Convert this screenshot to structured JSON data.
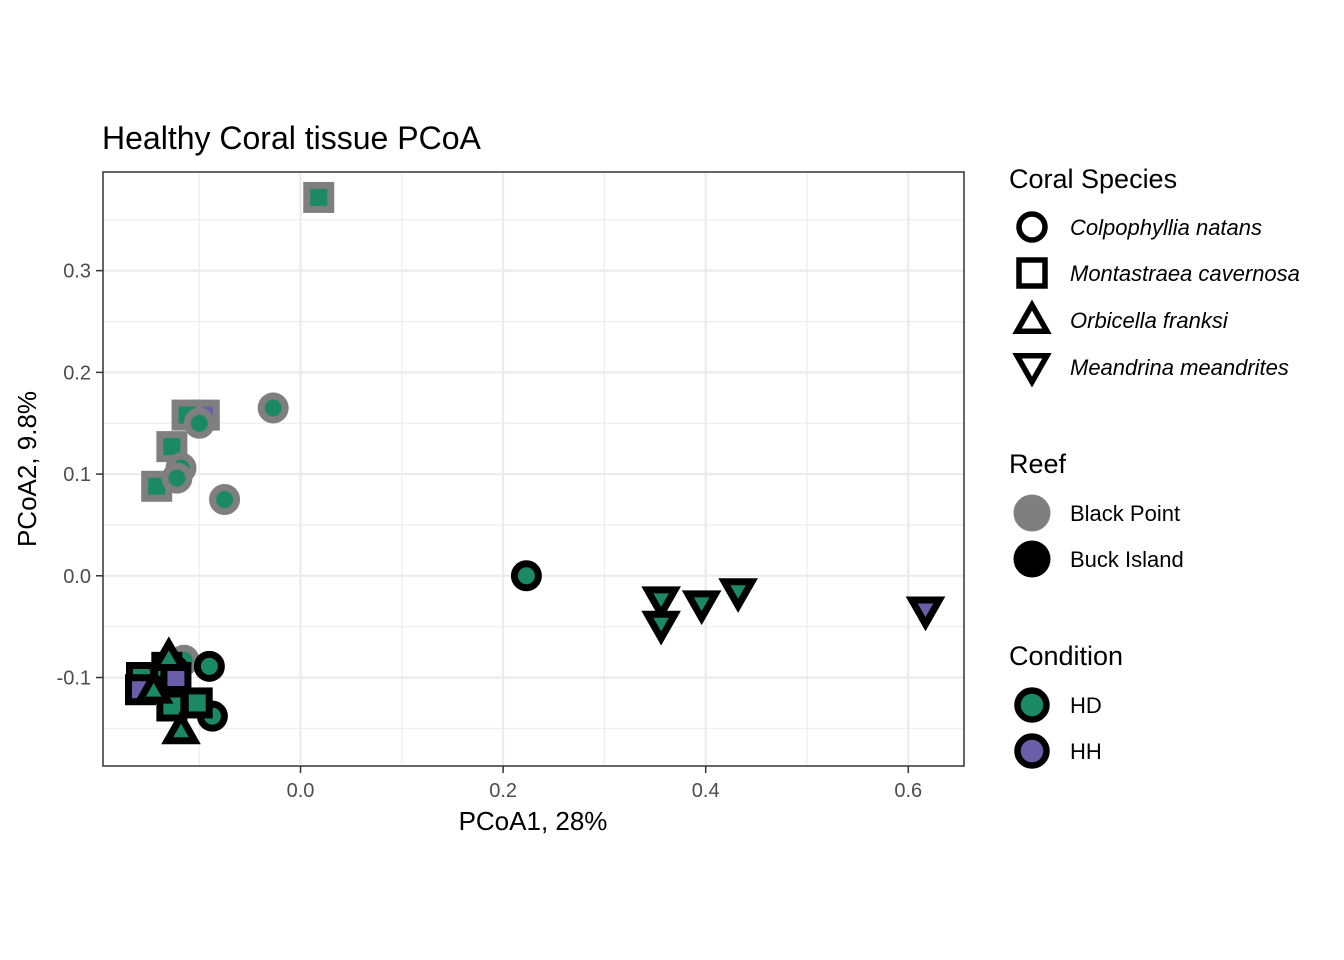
{
  "chart_data": {
    "type": "scatter",
    "title": "Healthy Coral tissue PCoA",
    "xlabel": "PCoA1, 28%",
    "ylabel": "PCoA2, 9.8%",
    "xlim": [
      -0.195,
      0.655
    ],
    "ylim": [
      -0.187,
      0.397
    ],
    "x_ticks": [
      0.0,
      0.2,
      0.4,
      0.6
    ],
    "x_tick_labels": [
      "0.0",
      "0.2",
      "0.4",
      "0.6"
    ],
    "y_ticks": [
      -0.1,
      0.0,
      0.1,
      0.2,
      0.3
    ],
    "y_tick_labels": [
      "-0.1",
      "0.0",
      "0.1",
      "0.2",
      "0.3"
    ],
    "grid": true,
    "legend_placement": "right",
    "colors": {
      "HD": "#1b8a64",
      "HH": "#6a5ea8",
      "Black Point": "#7f7f7f",
      "Buck Island": "#000000",
      "grid": "#ebebeb",
      "panel_border": "#333333"
    },
    "legends": [
      {
        "title": "Coral Species",
        "italic": true,
        "entries": [
          {
            "label": "Colpophyllia natans",
            "shape": "circle"
          },
          {
            "label": "Montastraea cavernosa",
            "shape": "square"
          },
          {
            "label": "Orbicella franksi",
            "shape": "triangle"
          },
          {
            "label": "Meandrina meandrites",
            "shape": "triangle-down"
          }
        ]
      },
      {
        "title": "Reef",
        "italic": false,
        "entries": [
          {
            "label": "Black Point",
            "color": "#7f7f7f"
          },
          {
            "label": "Buck Island",
            "color": "#000000"
          }
        ]
      },
      {
        "title": "Condition",
        "italic": false,
        "entries": [
          {
            "label": "HD",
            "fill": "#1b8a64"
          },
          {
            "label": "HH",
            "fill": "#6a5ea8"
          }
        ]
      }
    ],
    "points": [
      {
        "x": 0.018,
        "y": 0.372,
        "shape": "square",
        "reef": "Black Point",
        "condition": "HD"
      },
      {
        "x": -0.095,
        "y": 0.158,
        "shape": "square",
        "reef": "Black Point",
        "condition": "HH"
      },
      {
        "x": -0.112,
        "y": 0.158,
        "shape": "square",
        "reef": "Black Point",
        "condition": "HD"
      },
      {
        "x": -0.127,
        "y": 0.127,
        "shape": "square",
        "reef": "Black Point",
        "condition": "HD"
      },
      {
        "x": -0.142,
        "y": 0.088,
        "shape": "square",
        "reef": "Black Point",
        "condition": "HD"
      },
      {
        "x": -0.027,
        "y": 0.165,
        "shape": "circle",
        "reef": "Black Point",
        "condition": "HD"
      },
      {
        "x": -0.1,
        "y": 0.15,
        "shape": "circle",
        "reef": "Black Point",
        "condition": "HD"
      },
      {
        "x": -0.118,
        "y": 0.106,
        "shape": "circle",
        "reef": "Black Point",
        "condition": "HD"
      },
      {
        "x": -0.122,
        "y": 0.096,
        "shape": "circle",
        "reef": "Black Point",
        "condition": "HD"
      },
      {
        "x": -0.075,
        "y": 0.075,
        "shape": "circle",
        "reef": "Black Point",
        "condition": "HD"
      },
      {
        "x": -0.115,
        "y": -0.083,
        "shape": "circle",
        "reef": "Black Point",
        "condition": "HD"
      },
      {
        "x": 0.223,
        "y": 0.0,
        "shape": "circle",
        "reef": "Buck Island",
        "condition": "HD"
      },
      {
        "x": -0.09,
        "y": -0.089,
        "shape": "circle",
        "reef": "Buck Island",
        "condition": "HD"
      },
      {
        "x": -0.087,
        "y": -0.138,
        "shape": "circle",
        "reef": "Buck Island",
        "condition": "HD"
      },
      {
        "x": -0.125,
        "y": -0.093,
        "shape": "circle",
        "reef": "Buck Island",
        "condition": "HD"
      },
      {
        "x": -0.157,
        "y": -0.1,
        "shape": "square",
        "reef": "Buck Island",
        "condition": "HD"
      },
      {
        "x": -0.158,
        "y": -0.112,
        "shape": "square",
        "reef": "Buck Island",
        "condition": "HH"
      },
      {
        "x": -0.102,
        "y": -0.125,
        "shape": "square",
        "reef": "Buck Island",
        "condition": "HD"
      },
      {
        "x": -0.127,
        "y": -0.128,
        "shape": "square",
        "reef": "Buck Island",
        "condition": "HD"
      },
      {
        "x": -0.132,
        "y": -0.09,
        "shape": "square",
        "reef": "Buck Island",
        "condition": "HD"
      },
      {
        "x": -0.123,
        "y": -0.1,
        "shape": "square",
        "reef": "Buck Island",
        "condition": "HH"
      },
      {
        "x": -0.13,
        "y": -0.08,
        "shape": "triangle",
        "reef": "Buck Island",
        "condition": "HD"
      },
      {
        "x": -0.145,
        "y": -0.112,
        "shape": "triangle",
        "reef": "Buck Island",
        "condition": "HD"
      },
      {
        "x": -0.118,
        "y": -0.152,
        "shape": "triangle",
        "reef": "Buck Island",
        "condition": "HD"
      },
      {
        "x": 0.356,
        "y": -0.024,
        "shape": "triangle-down",
        "reef": "Buck Island",
        "condition": "HD"
      },
      {
        "x": 0.356,
        "y": -0.048,
        "shape": "triangle-down",
        "reef": "Buck Island",
        "condition": "HD"
      },
      {
        "x": 0.396,
        "y": -0.028,
        "shape": "triangle-down",
        "reef": "Buck Island",
        "condition": "HD"
      },
      {
        "x": 0.432,
        "y": -0.016,
        "shape": "triangle-down",
        "reef": "Buck Island",
        "condition": "HD"
      },
      {
        "x": 0.617,
        "y": -0.034,
        "shape": "triangle-down",
        "reef": "Buck Island",
        "condition": "HH"
      }
    ]
  }
}
